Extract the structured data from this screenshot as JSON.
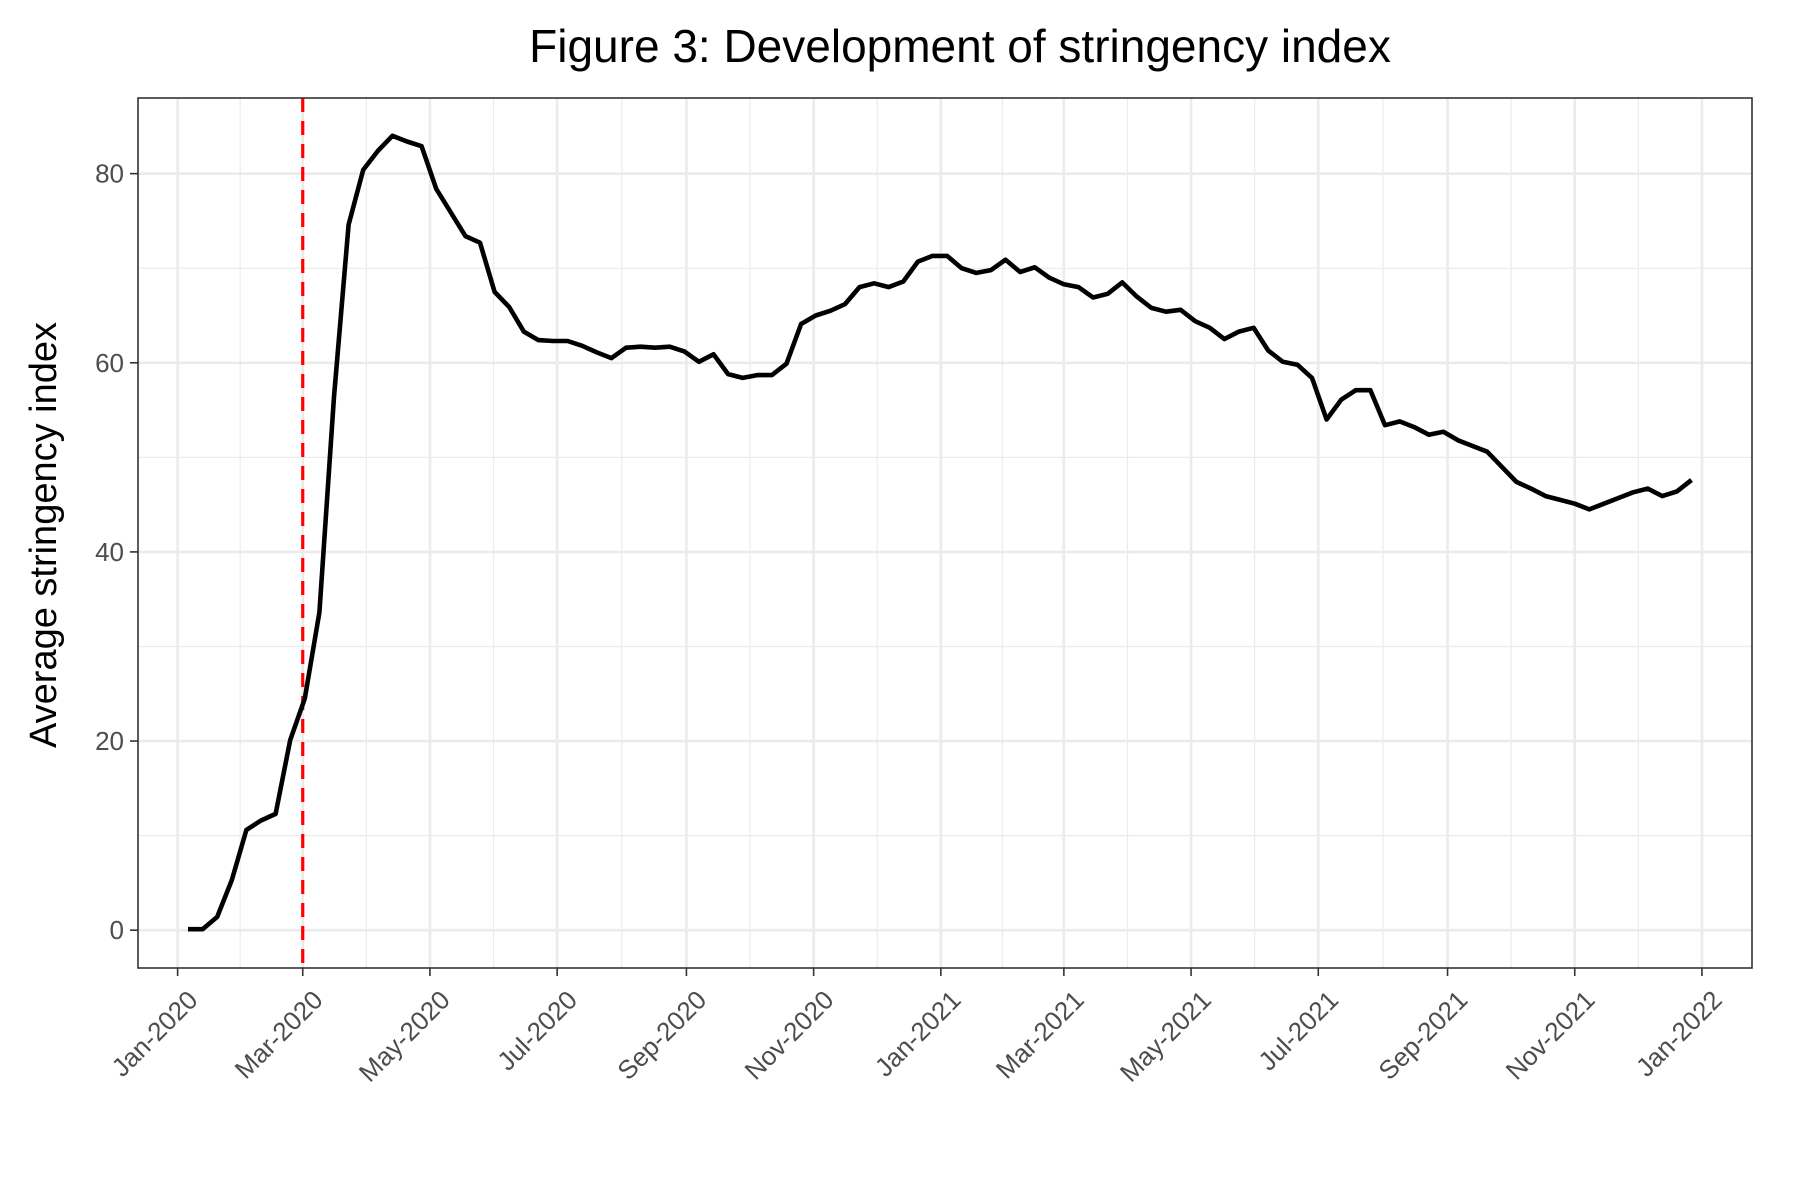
{
  "chart_data": {
    "type": "line",
    "title": "Figure 3: Development of stringency index",
    "xlabel": "",
    "ylabel": "Average stringency index",
    "ylim": [
      -4,
      88
    ],
    "xlim": [
      "2019-12-13",
      "2022-01-25"
    ],
    "yticks": [
      0,
      20,
      40,
      60,
      80
    ],
    "xticks": [
      {
        "date": "2020-01-01",
        "label": "Jan-2020"
      },
      {
        "date": "2020-03-01",
        "label": "Mar-2020"
      },
      {
        "date": "2020-05-01",
        "label": "May-2020"
      },
      {
        "date": "2020-07-01",
        "label": "Jul-2020"
      },
      {
        "date": "2020-09-01",
        "label": "Sep-2020"
      },
      {
        "date": "2020-11-01",
        "label": "Nov-2020"
      },
      {
        "date": "2021-01-01",
        "label": "Jan-2021"
      },
      {
        "date": "2021-03-01",
        "label": "Mar-2021"
      },
      {
        "date": "2021-05-01",
        "label": "May-2021"
      },
      {
        "date": "2021-07-01",
        "label": "Jul-2021"
      },
      {
        "date": "2021-09-01",
        "label": "Sep-2021"
      },
      {
        "date": "2021-11-01",
        "label": "Nov-2021"
      },
      {
        "date": "2022-01-01",
        "label": "Jan-2022"
      }
    ],
    "grid": true,
    "legend": "none",
    "reference_line": {
      "date": "2020-03-01",
      "color": "#ff0000",
      "style": "dashed"
    },
    "series": [
      {
        "color": "#000000",
        "x": [
          "2020-01-06",
          "2020-01-13",
          "2020-01-20",
          "2020-01-27",
          "2020-02-03",
          "2020-02-10",
          "2020-02-17",
          "2020-02-24",
          "2020-03-02",
          "2020-03-09",
          "2020-03-16",
          "2020-03-23",
          "2020-03-30",
          "2020-04-06",
          "2020-04-13",
          "2020-04-20",
          "2020-04-27",
          "2020-05-04",
          "2020-05-11",
          "2020-05-18",
          "2020-05-25",
          "2020-06-01",
          "2020-06-08",
          "2020-06-15",
          "2020-06-22",
          "2020-06-29",
          "2020-07-06",
          "2020-07-13",
          "2020-07-20",
          "2020-07-27",
          "2020-08-03",
          "2020-08-10",
          "2020-08-17",
          "2020-08-24",
          "2020-08-31",
          "2020-09-07",
          "2020-09-14",
          "2020-09-21",
          "2020-09-28",
          "2020-10-05",
          "2020-10-12",
          "2020-10-19",
          "2020-10-26",
          "2020-11-02",
          "2020-11-09",
          "2020-11-16",
          "2020-11-23",
          "2020-11-30",
          "2020-12-07",
          "2020-12-14",
          "2020-12-21",
          "2020-12-28",
          "2021-01-04",
          "2021-01-11",
          "2021-01-18",
          "2021-01-25",
          "2021-02-01",
          "2021-02-08",
          "2021-02-15",
          "2021-02-22",
          "2021-03-01",
          "2021-03-08",
          "2021-03-15",
          "2021-03-22",
          "2021-03-29",
          "2021-04-05",
          "2021-04-12",
          "2021-04-19",
          "2021-04-26",
          "2021-05-03",
          "2021-05-10",
          "2021-05-17",
          "2021-05-24",
          "2021-05-31",
          "2021-06-07",
          "2021-06-14",
          "2021-06-21",
          "2021-06-28",
          "2021-07-05",
          "2021-07-12",
          "2021-07-19",
          "2021-07-26",
          "2021-08-02",
          "2021-08-09",
          "2021-08-16",
          "2021-08-23",
          "2021-08-30",
          "2021-09-06",
          "2021-09-13",
          "2021-09-20",
          "2021-09-27",
          "2021-10-04",
          "2021-10-11",
          "2021-10-18",
          "2021-10-25",
          "2021-11-01",
          "2021-11-08",
          "2021-11-15",
          "2021-11-22",
          "2021-11-29",
          "2021-12-06",
          "2021-12-13",
          "2021-12-20",
          "2021-12-27"
        ],
        "y": [
          0.1,
          0.1,
          1.4,
          5.3,
          10.6,
          11.6,
          12.3,
          20.1,
          24.5,
          33.6,
          56.4,
          74.6,
          80.4,
          82.4,
          84.0,
          83.4,
          82.9,
          78.4,
          75.9,
          73.4,
          72.7,
          67.5,
          65.9,
          63.3,
          62.4,
          62.3,
          62.3,
          61.8,
          61.1,
          60.5,
          61.6,
          61.7,
          61.6,
          61.7,
          61.2,
          60.1,
          60.9,
          58.8,
          58.4,
          58.7,
          58.7,
          59.9,
          64.1,
          65.0,
          65.5,
          66.2,
          68.0,
          68.4,
          68.0,
          68.6,
          70.7,
          71.3,
          71.3,
          70.0,
          69.5,
          69.8,
          70.9,
          69.6,
          70.1,
          69.0,
          68.3,
          68.0,
          66.9,
          67.3,
          68.5,
          67.0,
          65.8,
          65.4,
          65.6,
          64.4,
          63.7,
          62.5,
          63.3,
          63.7,
          61.3,
          60.1,
          59.8,
          58.4,
          54.0,
          56.1,
          57.1,
          57.1,
          53.4,
          53.8,
          53.2,
          52.4,
          52.7,
          51.8,
          51.2,
          50.6,
          49.0,
          47.4,
          46.7,
          45.9,
          45.5,
          45.1,
          44.5,
          45.1,
          45.7,
          46.3,
          46.7,
          45.9,
          46.4,
          47.6
        ]
      }
    ]
  }
}
